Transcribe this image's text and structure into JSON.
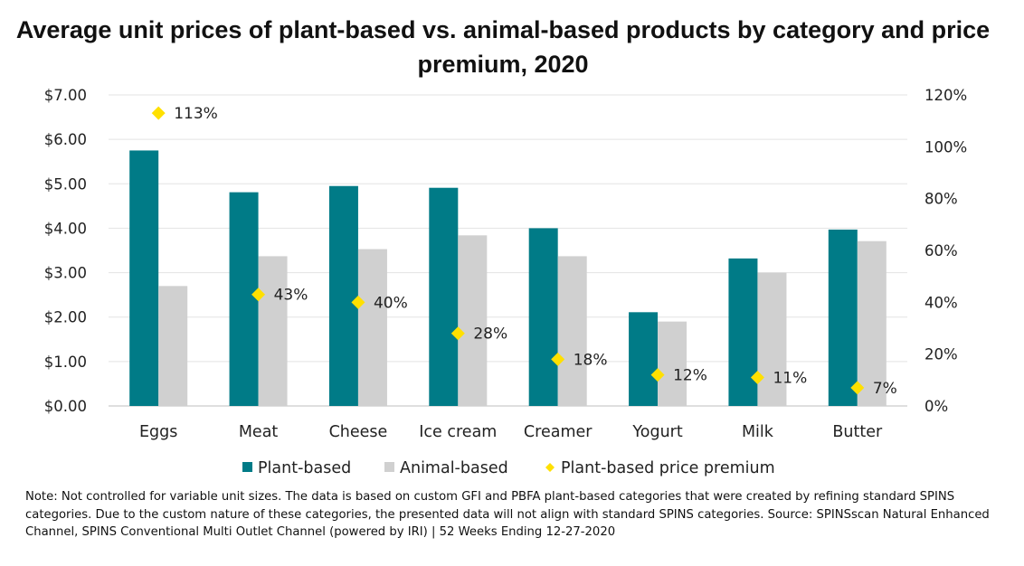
{
  "title": "Average unit prices of plant-based vs. animal-based products by category and price premium, 2020",
  "chart_data": {
    "type": "bar",
    "categories": [
      "Eggs",
      "Meat",
      "Cheese",
      "Ice cream",
      "Creamer",
      "Yogurt",
      "Milk",
      "Butter"
    ],
    "series": [
      {
        "name": "Plant-based",
        "type": "bar",
        "axis": "left",
        "color": "#007b87",
        "values": [
          5.75,
          4.81,
          4.95,
          4.91,
          4.0,
          2.11,
          3.32,
          3.97
        ]
      },
      {
        "name": "Animal-based",
        "type": "bar",
        "axis": "left",
        "color": "#d0d0d0",
        "values": [
          2.7,
          3.37,
          3.53,
          3.84,
          3.37,
          1.9,
          3.0,
          3.71
        ]
      },
      {
        "name": "Plant-based price premium",
        "type": "scatter",
        "axis": "right",
        "color": "#ffe000",
        "values": [
          113,
          43,
          40,
          28,
          18,
          12,
          11,
          7
        ],
        "labels": [
          "113%",
          "43%",
          "40%",
          "28%",
          "18%",
          "12%",
          "11%",
          "7%"
        ]
      }
    ],
    "y_left": {
      "range": [
        0,
        7
      ],
      "ticks": [
        "$0.00",
        "$1.00",
        "$2.00",
        "$3.00",
        "$4.00",
        "$5.00",
        "$6.00",
        "$7.00"
      ]
    },
    "y_right": {
      "range": [
        0,
        120
      ],
      "ticks": [
        "0%",
        "20%",
        "40%",
        "60%",
        "80%",
        "100%",
        "120%"
      ]
    },
    "grid": true,
    "legend_position": "bottom"
  },
  "note": "Note: Not controlled for variable unit sizes. The data is based on custom GFI and PBFA plant-based categories that were created by refining standard SPINS categories. Due to the custom nature of these categories, the presented data will not align with standard SPINS categories. Source: SPINSscan Natural Enhanced Channel, SPINS Conventional Multi Outlet Channel (powered by IRI) | 52 Weeks Ending 12-27-2020"
}
